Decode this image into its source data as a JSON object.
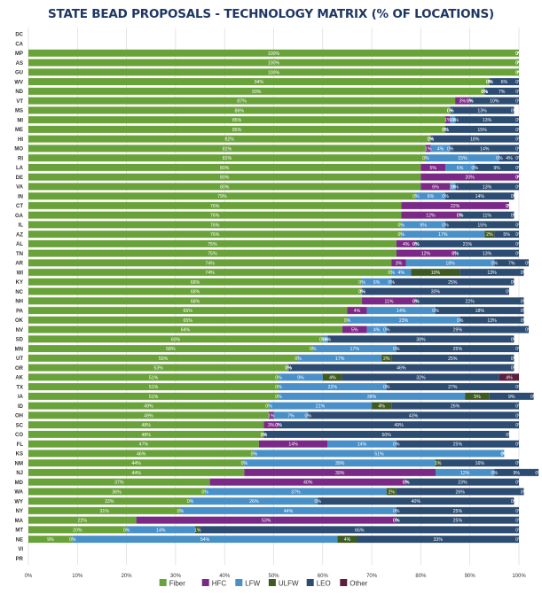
{
  "chart_data": {
    "type": "bar",
    "orientation": "horizontal",
    "stacked": true,
    "title": "STATE BEAD PROPOSALS - TECHNOLOGY MATRIX (% OF LOCATIONS)",
    "xlim": [
      0,
      100
    ],
    "x_ticks": [
      "0%",
      "10%",
      "20%",
      "30%",
      "40%",
      "50%",
      "60%",
      "70%",
      "80%",
      "90%",
      "100%"
    ],
    "grid": "vertical",
    "legend_position": "bottom",
    "colors": {
      "Fiber": "#6aa23a",
      "HFC": "#7a2a86",
      "LFW": "#4a90c8",
      "ULFW": "#3d5a22",
      "LEO": "#2d4c72",
      "Other": "#5a1e3e"
    },
    "categories": [
      "DC",
      "CA",
      "MP",
      "AS",
      "GU",
      "WV",
      "ND",
      "VT",
      "MS",
      "MI",
      "ME",
      "HI",
      "MO",
      "RI",
      "LA",
      "DE",
      "VA",
      "IN",
      "CT",
      "GA",
      "IL",
      "AZ",
      "AL",
      "TN",
      "AR",
      "WI",
      "KY",
      "NC",
      "NH",
      "PA",
      "OK",
      "NV",
      "SD",
      "MN",
      "UT",
      "OR",
      "AK",
      "TX",
      "IA",
      "ID",
      "OH",
      "SC",
      "CO",
      "FL",
      "KS",
      "NM",
      "NJ",
      "MD",
      "WA",
      "WY",
      "NY",
      "MA",
      "MT",
      "NE",
      "VI",
      "PR"
    ],
    "series": [
      {
        "name": "Fiber",
        "values": [
          0,
          0,
          100,
          100,
          100,
          94,
          93,
          87,
          86,
          85,
          85,
          82,
          81,
          81,
          80,
          80,
          80,
          79,
          76,
          76,
          76,
          76,
          75,
          75,
          74,
          74,
          68,
          68,
          68,
          65,
          65,
          64,
          60,
          58,
          55,
          53,
          51,
          51,
          51,
          49,
          49,
          48,
          48,
          47,
          46,
          44,
          44,
          37,
          36,
          33,
          31,
          22,
          20,
          9,
          0,
          0
        ]
      },
      {
        "name": "HFC",
        "values": [
          0,
          0,
          0,
          0,
          0,
          0,
          0,
          3,
          0,
          1,
          0,
          0,
          1,
          0,
          5,
          20,
          6,
          0,
          22,
          12,
          0,
          0,
          4,
          12,
          3,
          0,
          0,
          0,
          11,
          4,
          0,
          5,
          0,
          0,
          0,
          0,
          0,
          0,
          0,
          0,
          1,
          3,
          0,
          14,
          0,
          0,
          39,
          40,
          0,
          0,
          0,
          53,
          0,
          0,
          0,
          0
        ]
      },
      {
        "name": "LFW",
        "values": [
          0,
          0,
          0,
          0,
          0,
          0,
          0,
          0,
          0,
          1,
          0,
          0,
          4,
          15,
          6,
          0,
          1,
          6,
          0,
          0,
          9,
          17,
          0,
          0,
          18,
          4,
          6,
          0,
          0,
          14,
          23,
          4,
          1,
          17,
          17,
          0,
          9,
          22,
          38,
          21,
          7,
          0,
          0,
          14,
          51,
          39,
          12,
          0,
          37,
          26,
          44,
          0,
          14,
          54,
          0,
          0
        ]
      },
      {
        "name": "ULFW",
        "values": [
          0,
          0,
          0,
          0,
          0,
          0,
          0,
          0,
          0,
          0,
          0,
          0,
          0,
          0,
          0,
          0,
          0,
          0,
          0,
          0,
          0,
          2,
          0,
          0,
          0,
          10,
          0,
          0,
          0,
          0,
          0,
          0,
          0,
          0,
          2,
          0,
          4,
          0,
          5,
          4,
          0,
          0,
          0,
          0,
          0,
          1,
          0,
          0,
          2,
          0,
          0,
          0,
          1,
          4,
          0,
          0
        ]
      },
      {
        "name": "LEO",
        "values": [
          0,
          0,
          0,
          0,
          0,
          6,
          7,
          10,
          13,
          13,
          15,
          18,
          14,
          4,
          9,
          0,
          13,
          14,
          0,
          11,
          15,
          5,
          21,
          13,
          7,
          13,
          25,
          30,
          22,
          18,
          13,
          29,
          38,
          25,
          25,
          46,
          32,
          27,
          9,
          26,
          43,
          49,
          50,
          25,
          0,
          16,
          9,
          23,
          26,
          40,
          25,
          25,
          65,
          33,
          0,
          0
        ]
      },
      {
        "name": "Other",
        "values": [
          0,
          0,
          0,
          0,
          0,
          0,
          0,
          0,
          0,
          0,
          0,
          0,
          0,
          0,
          0,
          0,
          0,
          0,
          0,
          0,
          0,
          0,
          0,
          0,
          0,
          0,
          0,
          0,
          0,
          0,
          0,
          0,
          0,
          0,
          0,
          0,
          4,
          0,
          0,
          0,
          0,
          0,
          0,
          0,
          0,
          0,
          0,
          0,
          0,
          0,
          0,
          0,
          0,
          0,
          0,
          0
        ]
      }
    ]
  }
}
